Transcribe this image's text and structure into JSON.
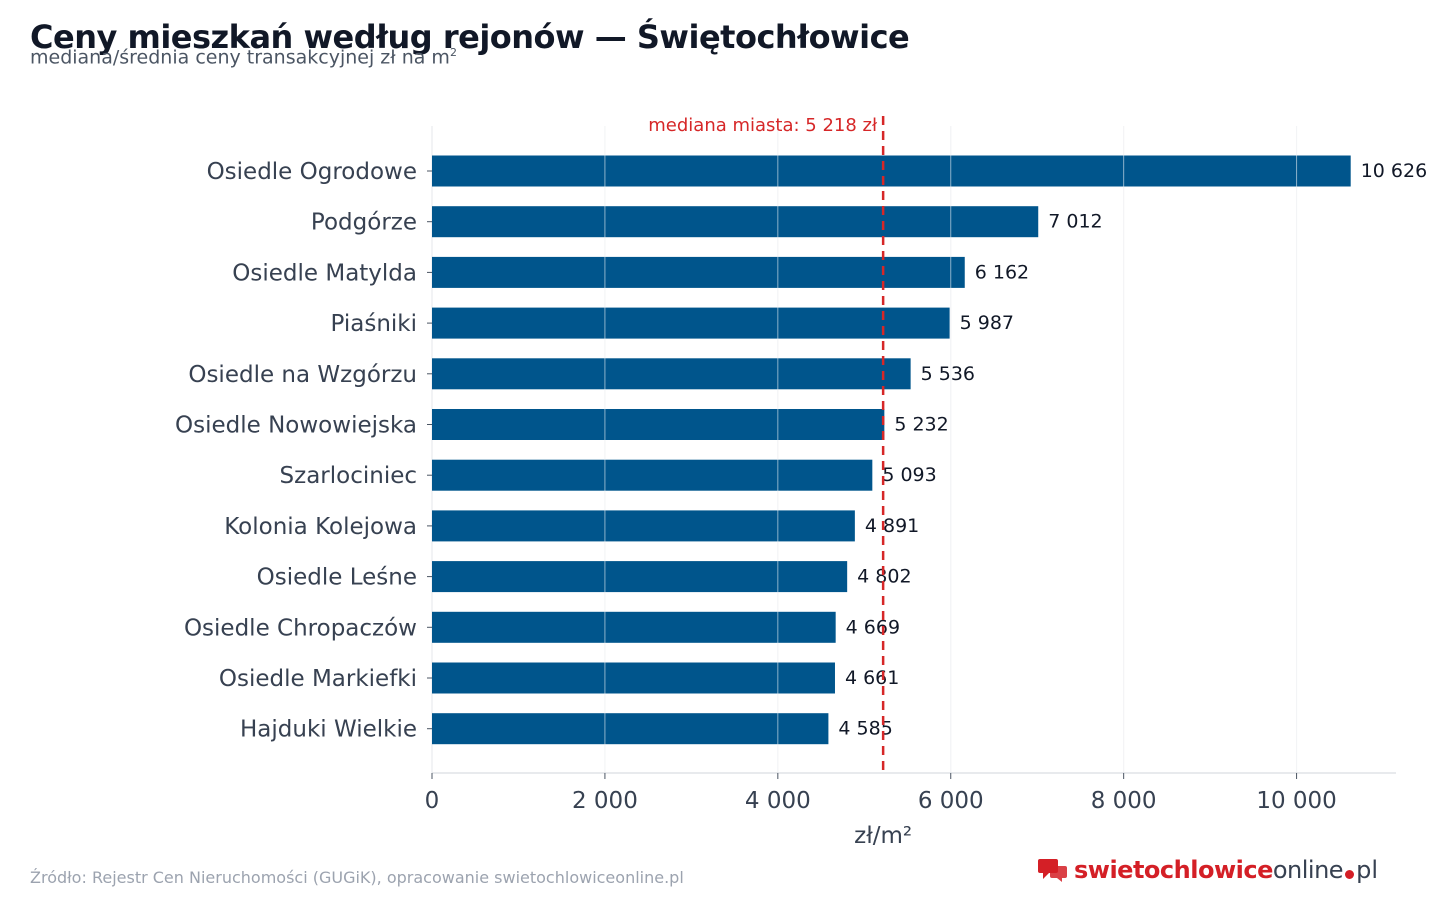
{
  "header": {
    "title": "Ceny mieszkań według rejonów — Świętochłowice",
    "subtitle": "mediana/średnia ceny transakcyjnej zł na m",
    "subtitle_sup": "2"
  },
  "chart_data": {
    "type": "bar",
    "orientation": "horizontal",
    "categories": [
      "Osiedle Ogrodowe",
      "Podgórze",
      "Osiedle Matylda",
      "Piaśniki",
      "Osiedle na Wzgórzu",
      "Osiedle Nowowiejska",
      "Szarlociniec",
      "Kolonia Kolejowa",
      "Osiedle Leśne",
      "Osiedle Chropaczów",
      "Osiedle Markiefki",
      "Hajduki Wielkie"
    ],
    "values": [
      10626,
      7012,
      6162,
      5987,
      5536,
      5232,
      5093,
      4891,
      4802,
      4669,
      4661,
      4585
    ],
    "value_labels": [
      "10 626",
      "7 012",
      "6 162",
      "5 987",
      "5 536",
      "5 232",
      "5 093",
      "4 891",
      "4 802",
      "4 669",
      "4 661",
      "4 585"
    ],
    "xlabel": "zł/m²",
    "xlim": [
      0,
      11150
    ],
    "xticks": [
      0,
      2000,
      4000,
      6000,
      8000,
      10000
    ],
    "xtick_labels": [
      "0",
      "2 000",
      "4 000",
      "6 000",
      "8 000",
      "10 000"
    ],
    "grid": "vertical",
    "reference_line": {
      "value": 5218,
      "label": "mediana miasta: 5 218 zł",
      "color": "#d62728",
      "style": "dashed"
    },
    "bar_color": "#00558c"
  },
  "footer": {
    "source": "Źródło: Rejestr Cen Nieruchomości (GUGiK), opracowanie swietochlowiceonline.pl",
    "logo_part1": "swietochlowice",
    "logo_part2": "online",
    "logo_part3": "pl",
    "logo_color": "#d41f26"
  }
}
